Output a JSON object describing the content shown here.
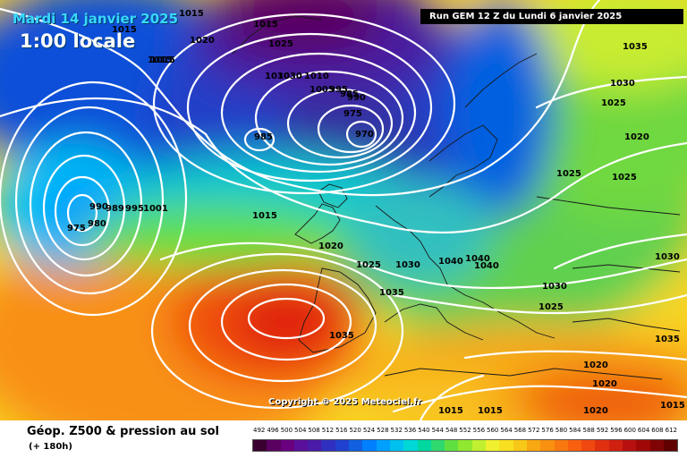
{
  "overlay": {
    "date_text": "Mardi 14 janvier 2025",
    "time_text": "1:00 locale",
    "run_text": "Run GEM 12 Z du Lundi 6 janvier 2025",
    "copyright": "Copyright © 2025 Meteociel.fr"
  },
  "footer": {
    "title": "Géop. Z500 & pression au sol",
    "subtitle": "(+ 180h)"
  },
  "scale": {
    "labels": [
      "492",
      "496",
      "500",
      "504",
      "508",
      "512",
      "516",
      "520",
      "524",
      "528",
      "532",
      "536",
      "540",
      "544",
      "548",
      "552",
      "556",
      "560",
      "564",
      "568",
      "572",
      "576",
      "580",
      "584",
      "588",
      "592",
      "596",
      "600",
      "604",
      "608",
      "612"
    ],
    "colors": [
      "#3a0030",
      "#5a0060",
      "#6a0080",
      "#5a109a",
      "#4a1aa8",
      "#3030c0",
      "#2040d0",
      "#1060e0",
      "#0080ff",
      "#00a0ff",
      "#00c0f0",
      "#00d8d8",
      "#00d8a0",
      "#30d870",
      "#60e040",
      "#90e830",
      "#c0f030",
      "#f0f030",
      "#f8e020",
      "#f8c818",
      "#f8a810",
      "#f89010",
      "#f87810",
      "#f86010",
      "#f04810",
      "#e03010",
      "#d02010",
      "#b81010",
      "#a00808",
      "#800404",
      "#600000"
    ]
  },
  "map": {
    "isobar_labels": [
      {
        "text": "1015"
      },
      {
        "text": "1015"
      },
      {
        "text": "1020"
      },
      {
        "text": "1015"
      },
      {
        "text": "1015"
      },
      {
        "text": "1025"
      },
      {
        "text": "1030"
      },
      {
        "text": "1010"
      },
      {
        "text": "1005"
      },
      {
        "text": "995"
      },
      {
        "text": "990"
      },
      {
        "text": "985"
      },
      {
        "text": "975"
      },
      {
        "text": "970"
      },
      {
        "text": "985"
      },
      {
        "text": "990"
      },
      {
        "text": "989"
      },
      {
        "text": "995"
      },
      {
        "text": "1001"
      },
      {
        "text": "980"
      },
      {
        "text": "975"
      },
      {
        "text": "1015"
      },
      {
        "text": "1020"
      },
      {
        "text": "1025"
      },
      {
        "text": "1030"
      },
      {
        "text": "1035"
      },
      {
        "text": "1035"
      },
      {
        "text": "1040"
      },
      {
        "text": "1040"
      },
      {
        "text": "1040"
      },
      {
        "text": "1030"
      },
      {
        "text": "1025"
      },
      {
        "text": "1035"
      },
      {
        "text": "1030"
      },
      {
        "text": "1025"
      },
      {
        "text": "1020"
      },
      {
        "text": "1025"
      },
      {
        "text": "1025"
      },
      {
        "text": "1030"
      },
      {
        "text": "1035"
      },
      {
        "text": "1020"
      },
      {
        "text": "1020"
      },
      {
        "text": "1015"
      },
      {
        "text": "1015"
      },
      {
        "text": "1015"
      },
      {
        "text": "1020"
      },
      {
        "text": "1015"
      },
      {
        "text": "1030"
      }
    ]
  }
}
